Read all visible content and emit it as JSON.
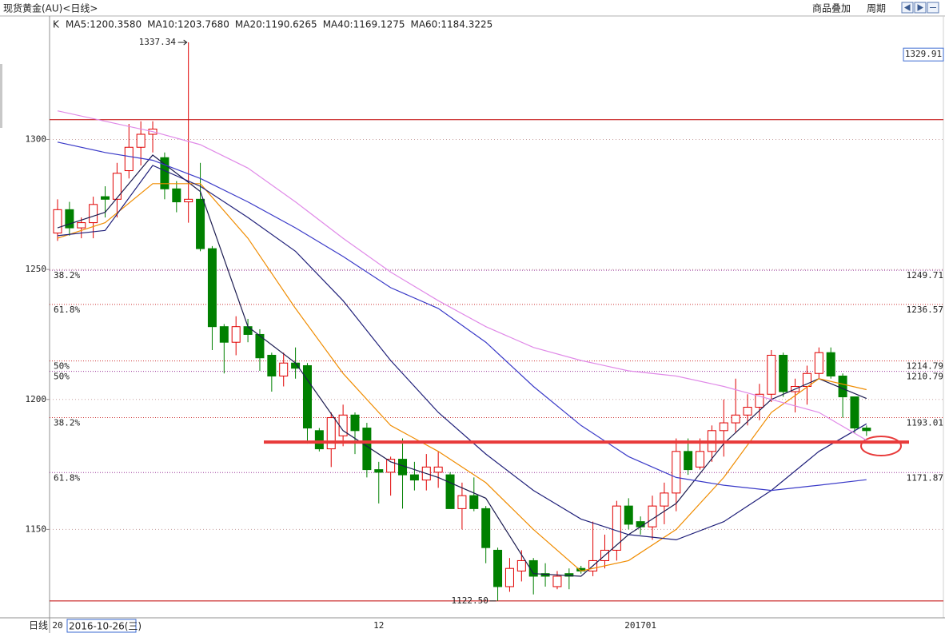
{
  "header": {
    "title": "现货黄金(AU)<日线>",
    "buttons": [
      "商品叠加",
      "周期"
    ],
    "period": "日线",
    "cursor_date": "2016-10-26(三)"
  },
  "chart_data": {
    "type": "candlestick",
    "legend_prefix": "K",
    "categories": [
      "20",
      null,
      null,
      null,
      null,
      null,
      null,
      null,
      null,
      null,
      null,
      null,
      null,
      null,
      null,
      null,
      null,
      null,
      null,
      null,
      null,
      null,
      null,
      null,
      null,
      null,
      null,
      "12",
      null,
      null,
      null,
      null,
      null,
      null,
      null,
      null,
      null,
      null,
      null,
      null,
      null,
      null,
      null,
      null,
      null,
      null,
      null,
      null,
      null,
      "201701",
      null,
      null,
      null,
      null,
      null,
      null,
      null,
      null,
      null,
      null,
      null,
      null,
      null,
      null,
      null,
      null,
      null,
      null,
      null
    ],
    "open": [
      1264,
      1273,
      1266,
      1268,
      1278,
      1277,
      1288,
      1297,
      1302,
      1293,
      1281,
      1276,
      1277,
      1258,
      1228,
      1222,
      1228,
      1225,
      1217,
      1209,
      1214,
      1213,
      1188,
      1181,
      1186,
      1194,
      1189,
      1173,
      1172,
      1177,
      1171,
      1169,
      1172,
      1171,
      1158,
      1163,
      1158,
      1142,
      1128,
      1134,
      1138,
      1133,
      1128,
      1133,
      1135,
      1134,
      1138,
      1142,
      1159,
      1153,
      1151,
      1159,
      1164,
      1180,
      1174,
      1180,
      1188,
      1191,
      1194,
      1197,
      1202,
      1217,
      1203,
      1205,
      1210,
      1218,
      1209,
      1201,
      1189
    ],
    "high": [
      1277,
      1276,
      1270,
      1278,
      1282,
      1291,
      1306,
      1307,
      1307,
      1295,
      1284,
      1337.34,
      1291,
      1259,
      1229,
      1232,
      1231,
      1227,
      1218,
      1218,
      1220,
      1214,
      1189,
      1195,
      1198,
      1195,
      1191,
      1176,
      1178,
      1185,
      1176,
      1179,
      1180,
      1172,
      1168,
      1170,
      1159,
      1143,
      1139,
      1142,
      1139,
      1137,
      1134,
      1135,
      1136,
      1153,
      1148,
      1161,
      1162,
      1155,
      1163,
      1168,
      1185,
      1185,
      1185,
      1190,
      1200,
      1208,
      1202,
      1206,
      1219,
      1218,
      1208,
      1213,
      1220,
      1220,
      1210,
      1201,
      1190
    ],
    "low": [
      1261,
      1263,
      1262,
      1262,
      1270,
      1270,
      1285,
      1290,
      1295,
      1277,
      1272,
      1268,
      1257,
      1219,
      1210,
      1217,
      1222,
      1211,
      1203,
      1205,
      1208,
      1183,
      1180,
      1174,
      1182,
      1179,
      1170,
      1160,
      1163,
      1158,
      1165,
      1165,
      1166,
      1158,
      1150,
      1157,
      1137,
      1122.5,
      1126,
      1130,
      1125,
      1128,
      1127,
      1127,
      1133,
      1132,
      1135,
      1138,
      1150,
      1148,
      1146,
      1152,
      1157,
      1171,
      1173,
      1176,
      1178,
      1187,
      1190,
      1192,
      1199,
      1201,
      1195,
      1198,
      1208,
      1208,
      1193,
      1187,
      1186
    ],
    "close": [
      1273,
      1266,
      1268,
      1275,
      1277,
      1287,
      1297,
      1302,
      1304,
      1281,
      1276,
      1277,
      1258,
      1228,
      1222,
      1228,
      1225,
      1216,
      1209,
      1214,
      1212,
      1189,
      1181,
      1193,
      1194,
      1188,
      1173,
      1172,
      1177,
      1171,
      1169,
      1174,
      1174,
      1158,
      1163,
      1158,
      1143,
      1128,
      1135,
      1138,
      1132,
      1132,
      1132,
      1132,
      1134,
      1138,
      1142,
      1159,
      1152,
      1151,
      1159,
      1164,
      1180,
      1173,
      1180,
      1188,
      1191,
      1194,
      1197,
      1202,
      1217,
      1203,
      1205,
      1210,
      1218,
      1209,
      1201,
      1189,
      1188
    ],
    "up_color": "#e00000",
    "down_color": "#008000",
    "series": [
      {
        "legend": "MA5:1200.3580",
        "color": "#1c1c50",
        "x": [
          0,
          4,
          8,
          12,
          16,
          20,
          24,
          28,
          32,
          36,
          40,
          44,
          48,
          52,
          56,
          60,
          64,
          68
        ],
        "values": [
          1266,
          1272,
          1294,
          1280,
          1228,
          1214,
          1188,
          1176,
          1170,
          1162,
          1133,
          1132,
          1148,
          1160,
          1183,
          1200,
          1208,
          1200.358
        ]
      },
      {
        "legend": "MA10:1203.7680",
        "color": "#f08c00",
        "x": [
          0,
          4,
          8,
          12,
          16,
          20,
          24,
          28,
          32,
          36,
          40,
          44,
          48,
          52,
          56,
          60,
          64,
          68
        ],
        "values": [
          1262,
          1268,
          1283,
          1283,
          1262,
          1235,
          1210,
          1190,
          1180,
          1168,
          1150,
          1134,
          1138,
          1150,
          1170,
          1195,
          1208,
          1203.768
        ]
      },
      {
        "legend": "MA20:1190.6265",
        "color": "#20207a",
        "x": [
          0,
          4,
          8,
          12,
          16,
          20,
          24,
          28,
          32,
          36,
          40,
          44,
          48,
          52,
          56,
          60,
          64,
          68
        ],
        "values": [
          1263,
          1265,
          1290,
          1282,
          1270,
          1257,
          1238,
          1215,
          1195,
          1179,
          1165,
          1154,
          1148,
          1146,
          1153,
          1165,
          1180,
          1190.6265
        ]
      },
      {
        "legend": "MA40:1169.1275",
        "color": "#3a3ac8",
        "x": [
          0,
          4,
          8,
          12,
          16,
          20,
          24,
          28,
          32,
          36,
          40,
          44,
          48,
          52,
          56,
          60,
          64,
          68
        ],
        "values": [
          1299,
          1295,
          1292,
          1285,
          1276,
          1266,
          1255,
          1243,
          1235,
          1222,
          1205,
          1190,
          1178,
          1170,
          1167,
          1165,
          1167,
          1169.1275
        ]
      },
      {
        "legend": "MA60:1184.3225",
        "color": "#e08ae8",
        "x": [
          0,
          4,
          8,
          12,
          16,
          20,
          24,
          28,
          32,
          36,
          40,
          44,
          48,
          52,
          56,
          60,
          64,
          68
        ],
        "values": [
          1311,
          1307,
          1303,
          1298,
          1289,
          1276,
          1262,
          1249,
          1238,
          1228,
          1220,
          1215,
          1211,
          1209,
          1205,
          1200,
          1195,
          1184.3225
        ]
      }
    ],
    "ylim": [
      1116,
      1347.5
    ],
    "yticks": [
      1150,
      1200,
      1250,
      1300
    ],
    "grid": true,
    "max_label": {
      "index": 11,
      "value": 1337.34
    },
    "min_label": {
      "index": 37,
      "value": {
        "value": 1122.5,
        "label": "1122.50"
      }
    },
    "hlines": [
      {
        "value": 1307.6,
        "color": "#c00000"
      },
      {
        "value": 1122.5,
        "color": "#c00000"
      }
    ],
    "fib_levels": [
      {
        "value": 1249.71,
        "pct": "38.2%",
        "color": "#800080"
      },
      {
        "value": 1236.57,
        "pct": "61.8%",
        "color": "#c00000"
      },
      {
        "value": 1214.79,
        "pct": "50%",
        "color": "#c00000"
      },
      {
        "value": 1210.79,
        "pct": "50%",
        "color": "#800080"
      },
      {
        "value": 1193.01,
        "pct": "38.2%",
        "color": "#c00000"
      },
      {
        "value": 1171.87,
        "pct": "61.8%",
        "color": "#800080"
      }
    ],
    "support_line": {
      "value": 1183.6,
      "color": "#e83a3a"
    },
    "cursor_price": 1329.91
  }
}
